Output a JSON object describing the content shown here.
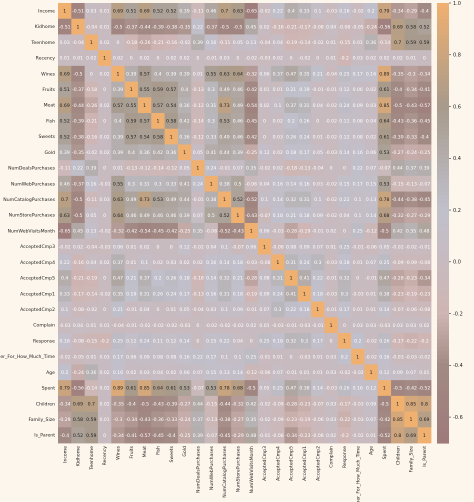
{
  "chart_data": {
    "type": "heatmap",
    "title": "",
    "xlabel": "",
    "ylabel": "",
    "labels": [
      "Income",
      "Kidhome",
      "Teenhome",
      "Recency",
      "Wines",
      "Fruits",
      "Meat",
      "Fish",
      "Sweets",
      "Gold",
      "NumDealsPurchases",
      "NumWebPurchases",
      "NumCatalogPurchases",
      "NumStorePurchases",
      "NumWebVisitsMonth",
      "AcceptedCmp3",
      "AcceptedCmp4",
      "AcceptedCmp5",
      "AcceptedCmp1",
      "AcceptedCmp2",
      "Complain",
      "Response",
      "Customer_For_How_Much_Time",
      "Age",
      "Spent",
      "Children",
      "Family_Size",
      "Is_Parent"
    ],
    "values": [
      [
        1.0,
        -0.51,
        0.03,
        0.01,
        0.69,
        0.51,
        0.69,
        0.52,
        0.52,
        0.39,
        -0.11,
        0.46,
        0.7,
        0.63,
        -0.65,
        -0.02,
        0.22,
        0.4,
        0.33,
        0.1,
        -0.03,
        0.16,
        -0.02,
        0.2,
        0.79,
        -0.34,
        -0.29,
        -0.4
      ],
      [
        -0.51,
        1.0,
        -0.04,
        0.01,
        -0.5,
        -0.37,
        -0.44,
        -0.39,
        -0.38,
        -0.35,
        0.22,
        -0.37,
        -0.5,
        -0.5,
        0.45,
        0.02,
        -0.16,
        -0.21,
        -0.17,
        -0.08,
        0.04,
        -0.08,
        -0.05,
        -0.24,
        -0.56,
        0.69,
        0.58,
        0.52
      ],
      [
        0.03,
        -0.04,
        1.0,
        0.02,
        0.0,
        -0.18,
        -0.26,
        -0.21,
        -0.16,
        -0.02,
        0.39,
        0.16,
        -0.11,
        0.05,
        0.13,
        -0.04,
        0.04,
        -0.19,
        -0.14,
        -0.02,
        0.01,
        -0.15,
        0.01,
        0.36,
        -0.14,
        0.7,
        0.59,
        0.59
      ],
      [
        0.01,
        0.01,
        0.02,
        1.0,
        0.02,
        -0.0,
        0.02,
        0.0,
        0.02,
        0.02,
        0.0,
        -0.01,
        0.03,
        0.0,
        -0.02,
        -0.03,
        0.02,
        0.0,
        -0.02,
        -0.0,
        0.01,
        -0.2,
        0.03,
        0.02,
        0.02,
        0.02,
        0.01,
        0.0
      ],
      [
        0.69,
        -0.5,
        0.0,
        0.02,
        1.0,
        0.39,
        0.57,
        0.4,
        0.39,
        0.39,
        0.01,
        0.55,
        0.63,
        0.64,
        -0.32,
        0.06,
        0.37,
        0.47,
        0.35,
        0.21,
        -0.04,
        0.25,
        0.17,
        0.16,
        0.89,
        -0.35,
        -0.3,
        -0.34
      ],
      [
        0.51,
        -0.37,
        -0.18,
        -0.0,
        0.39,
        1.0,
        0.55,
        0.59,
        0.57,
        0.4,
        -0.13,
        0.3,
        0.49,
        0.46,
        -0.42,
        0.01,
        0.01,
        0.21,
        0.19,
        -0.01,
        -0.01,
        0.12,
        0.06,
        0.02,
        0.61,
        -0.4,
        -0.34,
        -0.41
      ],
      [
        0.69,
        -0.44,
        -0.26,
        0.02,
        0.57,
        0.55,
        1.0,
        0.57,
        0.54,
        0.36,
        -0.12,
        0.31,
        0.73,
        0.49,
        -0.54,
        0.02,
        0.1,
        0.37,
        0.31,
        0.04,
        -0.02,
        0.24,
        0.09,
        0.03,
        0.85,
        -0.5,
        -0.43,
        -0.57
      ],
      [
        0.52,
        -0.39,
        -0.21,
        0.0,
        0.4,
        0.59,
        0.57,
        1.0,
        0.58,
        0.42,
        -0.14,
        0.3,
        0.53,
        0.46,
        -0.45,
        0.0,
        0.02,
        0.2,
        0.26,
        0.0,
        -0.02,
        0.11,
        0.08,
        0.04,
        0.64,
        -0.43,
        -0.36,
        -0.45
      ],
      [
        0.52,
        -0.38,
        -0.16,
        0.02,
        0.39,
        0.57,
        0.54,
        0.58,
        1.0,
        0.36,
        -0.12,
        0.33,
        0.49,
        0.46,
        -0.42,
        0.0,
        0.03,
        0.26,
        0.24,
        0.01,
        -0.02,
        0.12,
        0.08,
        0.02,
        0.61,
        -0.39,
        -0.33,
        -0.4
      ],
      [
        0.39,
        -0.35,
        -0.02,
        0.02,
        0.39,
        0.4,
        0.36,
        0.42,
        0.36,
        1.0,
        0.05,
        0.41,
        0.44,
        0.39,
        -0.25,
        0.12,
        0.02,
        0.18,
        0.17,
        0.05,
        -0.03,
        0.14,
        0.16,
        0.06,
        0.53,
        -0.27,
        -0.24,
        -0.25
      ],
      [
        -0.11,
        0.22,
        0.39,
        0.0,
        0.01,
        -0.13,
        -0.12,
        -0.14,
        -0.12,
        0.05,
        1.0,
        0.24,
        -0.01,
        0.07,
        0.35,
        -0.02,
        0.02,
        -0.18,
        -0.13,
        -0.04,
        0.0,
        0.0,
        0.22,
        0.07,
        -0.07,
        0.44,
        0.37,
        0.39
      ],
      [
        0.46,
        -0.37,
        0.16,
        -0.01,
        0.55,
        0.3,
        0.31,
        0.3,
        0.33,
        0.41,
        0.24,
        1.0,
        0.38,
        0.5,
        -0.06,
        0.04,
        0.16,
        0.14,
        0.16,
        0.03,
        -0.02,
        0.15,
        0.17,
        0.15,
        0.53,
        -0.15,
        -0.13,
        -0.07
      ],
      [
        0.7,
        -0.5,
        -0.11,
        0.03,
        0.63,
        0.49,
        0.73,
        0.53,
        0.49,
        0.44,
        -0.01,
        0.38,
        1.0,
        0.52,
        -0.52,
        0.1,
        0.14,
        0.32,
        0.31,
        0.1,
        -0.02,
        0.22,
        0.1,
        0.13,
        0.78,
        -0.44,
        -0.38,
        -0.45
      ],
      [
        0.63,
        -0.5,
        0.05,
        0.0,
        0.64,
        0.46,
        0.49,
        0.46,
        0.46,
        0.39,
        0.07,
        0.5,
        0.52,
        1.0,
        -0.43,
        -0.07,
        0.18,
        0.21,
        0.18,
        0.09,
        -0.02,
        0.04,
        0.1,
        0.14,
        0.68,
        -0.32,
        -0.27,
        -0.29
      ],
      [
        -0.65,
        0.45,
        0.13,
        -0.02,
        -0.32,
        -0.42,
        -0.54,
        -0.45,
        -0.42,
        -0.25,
        0.35,
        -0.06,
        -0.52,
        -0.43,
        1.0,
        0.06,
        -0.03,
        -0.28,
        -0.19,
        -0.01,
        0.02,
        0.0,
        0.25,
        -0.12,
        -0.5,
        0.42,
        0.35,
        0.48
      ],
      [
        -0.02,
        0.02,
        -0.04,
        -0.03,
        0.06,
        0.01,
        0.02,
        0.0,
        0.0,
        0.12,
        -0.02,
        0.04,
        0.1,
        -0.07,
        0.06,
        1.0,
        -0.08,
        0.08,
        0.09,
        0.07,
        0.01,
        0.25,
        -0.01,
        -0.06,
        0.05,
        -0.02,
        -0.02,
        -0.01
      ],
      [
        0.22,
        -0.16,
        0.04,
        0.02,
        0.37,
        0.01,
        0.1,
        0.02,
        0.03,
        0.02,
        0.02,
        0.16,
        0.14,
        0.18,
        -0.03,
        -0.08,
        1.0,
        0.31,
        0.24,
        0.3,
        -0.03,
        0.18,
        0.01,
        0.07,
        0.25,
        -0.09,
        -0.09,
        -0.08
      ],
      [
        0.4,
        -0.21,
        -0.19,
        0.0,
        0.47,
        0.21,
        0.37,
        0.2,
        0.26,
        0.18,
        -0.18,
        0.14,
        0.32,
        0.21,
        -0.28,
        0.08,
        0.31,
        1.0,
        0.41,
        0.22,
        -0.01,
        0.32,
        -0.0,
        -0.01,
        0.47,
        -0.28,
        -0.23,
        -0.34
      ],
      [
        0.33,
        -0.17,
        -0.14,
        -0.02,
        0.35,
        0.19,
        0.31,
        0.26,
        0.24,
        0.17,
        -0.13,
        0.16,
        0.31,
        0.18,
        -0.19,
        0.09,
        0.24,
        0.41,
        1.0,
        0.18,
        -0.03,
        0.3,
        -0.03,
        0.01,
        0.38,
        -0.23,
        -0.19,
        -0.23
      ],
      [
        0.1,
        -0.08,
        -0.02,
        -0.0,
        0.21,
        -0.01,
        0.04,
        0.0,
        0.01,
        0.05,
        -0.04,
        0.03,
        0.1,
        0.09,
        -0.01,
        0.07,
        0.3,
        0.22,
        0.18,
        1.0,
        -0.01,
        0.17,
        0.01,
        0.01,
        0.14,
        -0.07,
        -0.06,
        -0.08
      ],
      [
        -0.03,
        0.04,
        0.01,
        0.01,
        -0.04,
        -0.01,
        -0.02,
        -0.02,
        -0.02,
        -0.03,
        0.0,
        -0.02,
        -0.02,
        -0.02,
        0.02,
        0.01,
        -0.03,
        -0.01,
        -0.03,
        -0.01,
        1.0,
        -0.0,
        0.03,
        0.03,
        -0.03,
        0.03,
        0.03,
        0.02
      ],
      [
        0.16,
        -0.08,
        -0.15,
        -0.2,
        0.25,
        0.12,
        0.24,
        0.11,
        0.12,
        0.14,
        0.0,
        0.15,
        0.22,
        0.04,
        0.0,
        0.25,
        0.18,
        0.32,
        0.3,
        0.17,
        -0.0,
        1.0,
        0.2,
        -0.02,
        0.26,
        -0.17,
        -0.22,
        -0.2
      ],
      [
        -0.02,
        -0.05,
        0.01,
        0.03,
        0.17,
        0.06,
        0.09,
        0.08,
        0.08,
        0.16,
        0.22,
        0.17,
        0.1,
        0.1,
        0.25,
        -0.01,
        0.01,
        -0.0,
        -0.03,
        0.01,
        0.03,
        0.2,
        1.0,
        -0.02,
        0.16,
        -0.03,
        -0.03,
        -0.02
      ],
      [
        0.2,
        -0.24,
        0.36,
        0.02,
        0.16,
        0.02,
        0.03,
        0.04,
        0.02,
        0.06,
        0.07,
        0.15,
        0.13,
        0.14,
        -0.12,
        -0.06,
        0.07,
        -0.01,
        0.01,
        0.01,
        0.03,
        -0.02,
        -0.02,
        1.0,
        0.12,
        0.09,
        0.07,
        0.01
      ],
      [
        0.79,
        -0.56,
        -0.14,
        0.02,
        0.89,
        0.61,
        0.85,
        0.64,
        0.61,
        0.53,
        -0.07,
        0.53,
        0.78,
        0.68,
        -0.5,
        0.05,
        0.25,
        0.47,
        0.38,
        0.14,
        -0.03,
        0.26,
        0.16,
        0.12,
        1.0,
        -0.5,
        -0.42,
        -0.52
      ],
      [
        -0.34,
        0.69,
        0.7,
        0.02,
        -0.35,
        -0.4,
        -0.5,
        -0.43,
        -0.39,
        -0.27,
        0.44,
        -0.15,
        -0.44,
        -0.32,
        0.42,
        -0.02,
        -0.09,
        -0.28,
        -0.23,
        -0.07,
        0.03,
        -0.17,
        -0.03,
        0.09,
        -0.5,
        1.0,
        0.85,
        0.8
      ],
      [
        -0.29,
        0.58,
        0.59,
        0.01,
        -0.3,
        -0.34,
        -0.43,
        -0.36,
        -0.33,
        -0.24,
        0.37,
        -0.13,
        -0.38,
        -0.27,
        0.35,
        -0.02,
        -0.09,
        -0.23,
        -0.19,
        -0.06,
        0.03,
        -0.22,
        -0.03,
        0.07,
        -0.42,
        0.85,
        1.0,
        0.69
      ],
      [
        -0.4,
        0.52,
        0.59,
        0.0,
        -0.34,
        -0.41,
        -0.57,
        -0.45,
        -0.4,
        -0.25,
        0.39,
        -0.07,
        -0.45,
        -0.29,
        0.48,
        -0.01,
        -0.08,
        -0.34,
        -0.23,
        -0.08,
        0.02,
        -0.2,
        -0.02,
        0.01,
        -0.52,
        0.8,
        0.69,
        1.0
      ]
    ],
    "colorbar": {
      "ticks": [
        1.0,
        0.8,
        0.6,
        0.4,
        0.2,
        0.0,
        -0.2,
        -0.4,
        -0.6
      ],
      "range": [
        -0.7,
        1.0
      ],
      "colors": [
        "#9e7a7a",
        "#a28a84",
        "#cfb5b3",
        "#c0c0cc",
        "#a79a8c",
        "#f0b070"
      ]
    },
    "grid": false,
    "legend": "right"
  }
}
